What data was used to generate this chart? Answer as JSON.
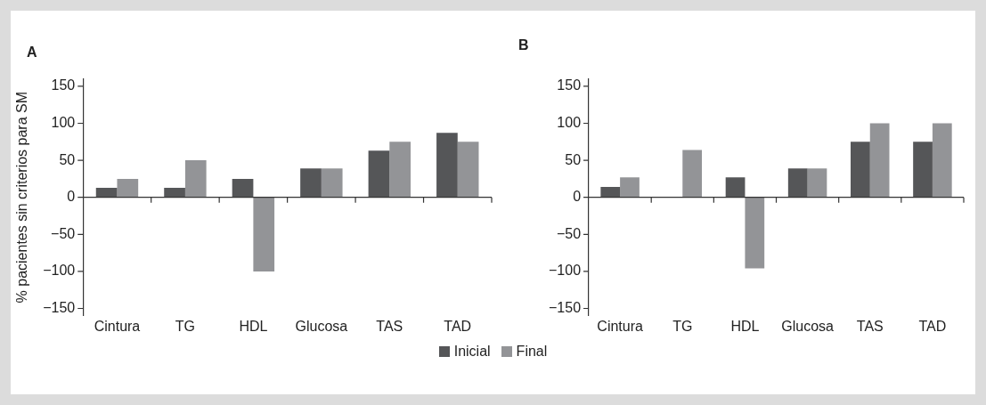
{
  "chart_data": [
    {
      "type": "bar",
      "title": "A",
      "ylabel": "% pacientes sin criterios para SM",
      "categories": [
        "Cintura",
        "TG",
        "HDL",
        "Glucosa",
        "TAS",
        "TAD"
      ],
      "series": [
        {
          "name": "Inicial",
          "color": "#555658",
          "values": [
            13,
            13,
            25,
            39,
            63,
            87
          ]
        },
        {
          "name": "Final",
          "color": "#939497",
          "values": [
            25,
            50,
            -100,
            39,
            75,
            75
          ]
        }
      ],
      "ylim": [
        -160,
        160
      ],
      "yticks": [
        -150,
        -100,
        -50,
        0,
        50,
        100,
        150
      ],
      "legend": "bottom"
    },
    {
      "type": "bar",
      "title": "B",
      "categories": [
        "Cintura",
        "TG",
        "HDL",
        "Glucosa",
        "TAS",
        "TAD"
      ],
      "series": [
        {
          "color": "#555658",
          "values": [
            14,
            0,
            27,
            39,
            75,
            75
          ]
        },
        {
          "color": "#939497",
          "values": [
            27,
            64,
            -96,
            39,
            100,
            100
          ]
        }
      ],
      "ylim": [
        -160,
        160
      ],
      "yticks": [
        -150,
        -100,
        -50,
        0,
        50,
        100,
        150
      ]
    }
  ]
}
